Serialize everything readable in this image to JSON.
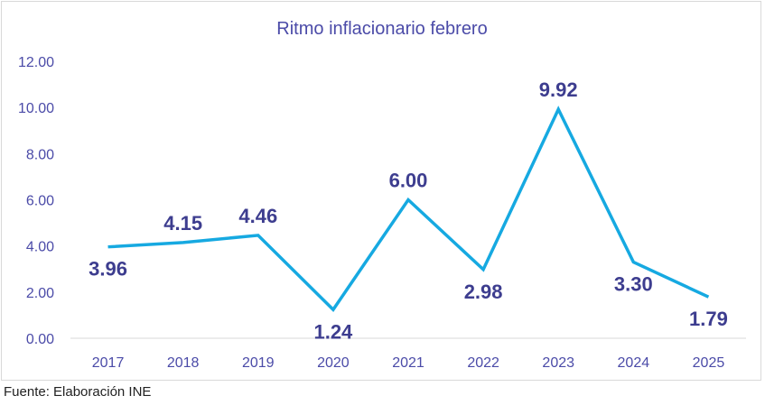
{
  "chart_data": {
    "type": "line",
    "title": "Ritmo inflacionario febrero",
    "categories": [
      "2017",
      "2018",
      "2019",
      "2020",
      "2021",
      "2022",
      "2023",
      "2024",
      "2025"
    ],
    "values": [
      3.96,
      4.15,
      4.46,
      1.24,
      6.0,
      2.98,
      9.92,
      3.3,
      1.79
    ],
    "data_labels": [
      "3.96",
      "4.15",
      "4.46",
      "1.24",
      "6.00",
      "2.98",
      "9.92",
      "3.30",
      "1.79"
    ],
    "label_position": [
      "below",
      "above",
      "above",
      "below",
      "above",
      "below",
      "above",
      "below",
      "below"
    ],
    "y_ticks": [
      "0.00",
      "2.00",
      "4.00",
      "6.00",
      "8.00",
      "10.00",
      "12.00"
    ],
    "ylim": [
      0,
      12
    ],
    "grid": false,
    "line_color": "#16a9e1",
    "xlabel": "",
    "ylabel": ""
  },
  "source_text": "Fuente: Elaboración INE"
}
